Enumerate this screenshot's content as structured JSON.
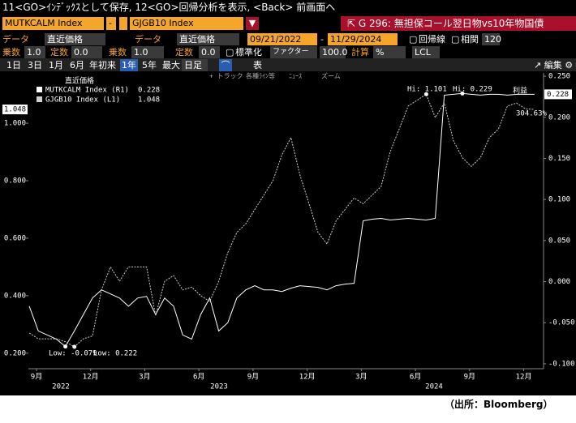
{
  "header": {
    "command_line": "11<GO>ｲﾝﾃﾞｯｸｽとして保存, 12<GO>回帰分析を表示, <Back> 前画面へ",
    "security1": "MUTKCALM Index",
    "separator": "-",
    "security2": "GJGB10 Index",
    "function_title": "G 296: 無担保コール翌日物vs10年物国債"
  },
  "row3": [
    "データ",
    "直近価格",
    "データ",
    "直近価格",
    "09/21/2022",
    "-",
    "11/29/2024",
    "回帰線",
    "相関",
    "120"
  ],
  "row4": [
    "乗数",
    "1.0",
    "定数",
    "0.0",
    "乗数",
    "1.0",
    "定数",
    "0.0",
    "標準化",
    "ファクター",
    "100.0",
    "計算",
    "%",
    "LCL"
  ],
  "periods": [
    "1日",
    "3日",
    "1月",
    "6月",
    "年初来",
    "1年",
    "5年",
    "最大"
  ],
  "frequency": "日足",
  "table_button": "表",
  "edit_button": "編集",
  "chart_toolbar": [
    "+ トラック",
    "各種ﾗｲﾝ等",
    "ﾆｭｰｽ",
    "ズーム"
  ],
  "chart_data": {
    "type": "line",
    "legend_title": "直近価格",
    "x": [
      -0.4,
      0.1,
      0.6,
      1.1,
      1.6,
      2.1,
      2.6,
      3.1,
      3.6,
      4.1,
      4.6,
      5.1,
      5.6,
      6.1,
      6.6,
      7.1,
      7.6,
      8.1,
      8.6,
      9.1,
      9.6,
      10.1,
      10.6,
      11.1,
      11.6,
      12.1,
      12.6,
      13.1,
      13.6,
      14.1,
      14.6,
      15.1,
      15.6,
      16.1,
      16.6,
      17.1,
      17.6,
      18.1,
      18.6,
      19.1,
      19.6,
      20.1,
      20.6,
      21.1,
      21.6,
      22.1,
      22.6,
      23.1,
      23.6,
      24.1,
      24.6,
      25.1,
      25.6,
      26.1,
      26.6,
      27.1,
      27.6
    ],
    "xlim": [
      -0.45,
      28.1
    ],
    "xticks": [
      {
        "value": 0,
        "label": "9月"
      },
      {
        "value": 3,
        "label": "12月"
      },
      {
        "value": 6,
        "label": "3月"
      },
      {
        "value": 9,
        "label": "6月"
      },
      {
        "value": 12,
        "label": "9月"
      },
      {
        "value": 15,
        "label": "12月"
      },
      {
        "value": 18,
        "label": "3月"
      },
      {
        "value": 21,
        "label": "6月"
      },
      {
        "value": 24,
        "label": "9月"
      },
      {
        "value": 27,
        "label": "12月"
      }
    ],
    "x_groups": [
      "2022",
      "2023",
      "2024"
    ],
    "ylim": [
      0.146,
      1.175
    ],
    "yticks": [
      {
        "value": 0.2,
        "label": "0.200"
      },
      {
        "value": 0.4,
        "label": "0.400"
      },
      {
        "value": 0.6,
        "label": "0.600"
      },
      {
        "value": 0.8,
        "label": "0.800"
      },
      {
        "value": 1.0,
        "label": "1.000"
      }
    ],
    "y2lim": [
      -0.106,
      0.254
    ],
    "y2ticks": [
      {
        "value": 0.25,
        "label": "0.250"
      },
      {
        "value": 0.2,
        "label": "0.200"
      },
      {
        "value": 0.15,
        "label": "0.150"
      },
      {
        "value": 0.1,
        "label": "0.100"
      },
      {
        "value": 0.05,
        "label": "0.050"
      },
      {
        "value": 0,
        "label": "0.000"
      },
      {
        "value": -0.05,
        "label": "-0.050"
      },
      {
        "value": -0.1,
        "label": "-0.100"
      }
    ],
    "series": [
      {
        "name": "MUTKCALM Index (R1)",
        "color": "#ffffff",
        "axis": "y2",
        "dashed": false,
        "values": [
          -0.03,
          -0.06,
          -0.065,
          -0.07,
          -0.079,
          -0.06,
          -0.04,
          -0.02,
          -0.01,
          -0.015,
          -0.02,
          -0.03,
          -0.02,
          -0.018,
          -0.04,
          -0.02,
          -0.03,
          -0.065,
          -0.07,
          -0.04,
          -0.02,
          -0.06,
          -0.05,
          -0.02,
          -0.01,
          -0.005,
          -0.01,
          -0.01,
          -0.012,
          -0.008,
          -0.005,
          -0.006,
          -0.007,
          -0.01,
          -0.005,
          -0.003,
          -0.002,
          0.074,
          0.076,
          0.077,
          0.075,
          0.076,
          0.077,
          0.076,
          0.075,
          0.077,
          0.227,
          0.228,
          0.229,
          0.228,
          0.227,
          0.228,
          0.228,
          0.227,
          0.228,
          0.228,
          0.228
        ]
      },
      {
        "name": "GJGB10 Index (L1)",
        "color": "#d0d0d0",
        "axis": "y",
        "dashed": true,
        "values": [
          0.27,
          0.25,
          0.25,
          0.25,
          0.24,
          0.222,
          0.25,
          0.26,
          0.42,
          0.5,
          0.45,
          0.5,
          0.5,
          0.5,
          0.33,
          0.45,
          0.47,
          0.42,
          0.43,
          0.4,
          0.38,
          0.45,
          0.55,
          0.62,
          0.65,
          0.7,
          0.75,
          0.8,
          0.89,
          0.95,
          0.82,
          0.72,
          0.62,
          0.58,
          0.66,
          0.7,
          0.74,
          0.72,
          0.75,
          0.78,
          0.9,
          0.98,
          1.06,
          1.08,
          1.101,
          1.02,
          1.07,
          0.94,
          0.88,
          0.85,
          0.88,
          0.95,
          0.98,
          1.06,
          1.07,
          1.05,
          1.048
        ]
      }
    ],
    "annotations": [
      "Hi: 1.101",
      "Hi: 0.229",
      "利益",
      "304.63%",
      "Low: -0.079",
      "Low: 0.222"
    ]
  },
  "source": "（出所：Bloomberg）"
}
